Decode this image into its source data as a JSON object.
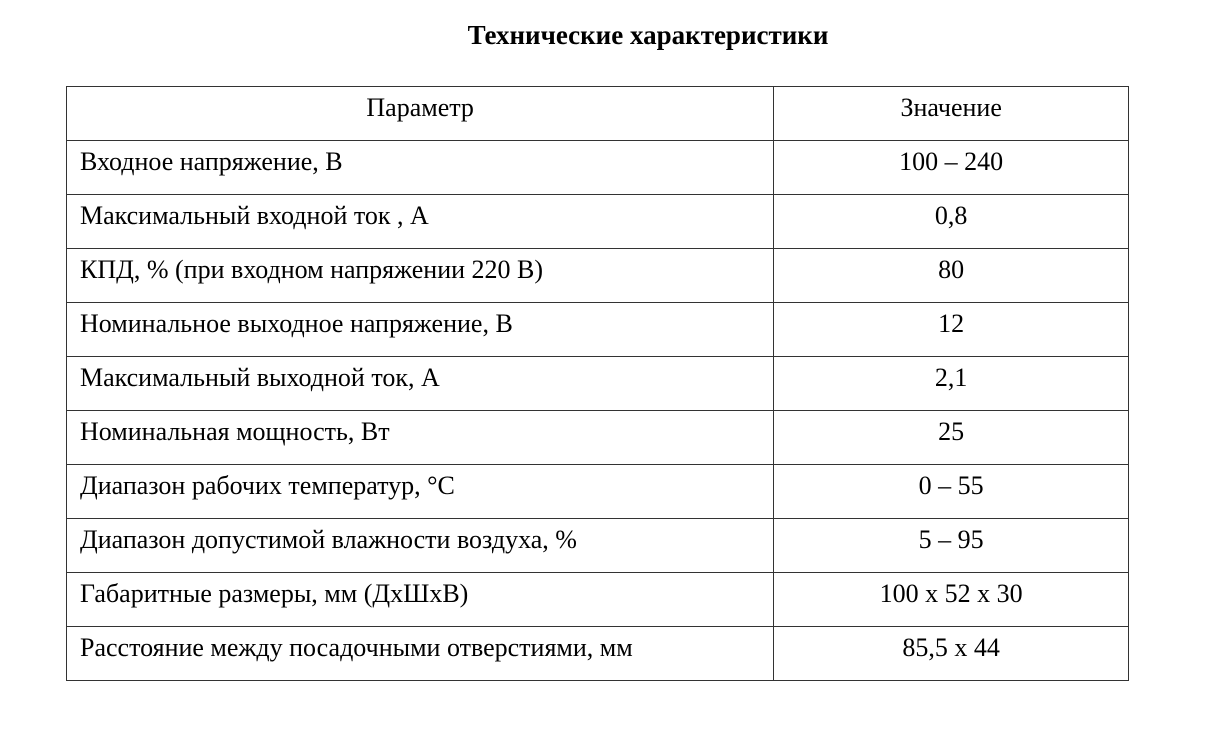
{
  "title": "Технические характеристики",
  "table": {
    "headers": [
      "Параметр",
      "Значение"
    ],
    "rows": [
      [
        "Входное напряжение, В",
        "100 – 240"
      ],
      [
        "Максимальный входной ток , А",
        "0,8"
      ],
      [
        "КПД, % (при входном напряжении 220 В)",
        "80"
      ],
      [
        "Номинальное выходное напряжение, В",
        "12"
      ],
      [
        "Максимальный выходной ток, А",
        "2,1"
      ],
      [
        "Номинальная мощность, Вт",
        "25"
      ],
      [
        "Диапазон рабочих температур, °С",
        "0 – 55"
      ],
      [
        "Диапазон допустимой влажности воздуха, %",
        "5 – 95"
      ],
      [
        "Габаритные размеры, мм (ДхШхВ)",
        "100 х 52 х 30"
      ],
      [
        "Расстояние между посадочными отверстиями, мм",
        "85,5 х 44"
      ]
    ]
  }
}
